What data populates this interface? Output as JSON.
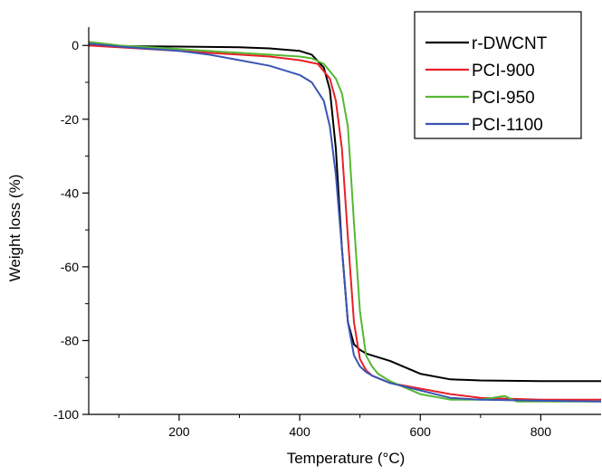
{
  "chart_data": {
    "type": "line",
    "title": "",
    "xlabel": "Temperature (°C)",
    "ylabel": "Weight loss (%)",
    "xlim": [
      50,
      900
    ],
    "ylim": [
      -100,
      3
    ],
    "x_ticks": [
      {
        "value": 200,
        "label": "200"
      },
      {
        "value": 400,
        "label": "400"
      },
      {
        "value": 600,
        "label": "600"
      },
      {
        "value": 800,
        "label": "800"
      }
    ],
    "y_ticks": [
      {
        "value": 0,
        "label": "0"
      },
      {
        "value": -20,
        "label": "-20"
      },
      {
        "value": -40,
        "label": "-40"
      },
      {
        "value": -60,
        "label": "-60"
      },
      {
        "value": -80,
        "label": "-80"
      },
      {
        "value": -100,
        "label": "-100"
      }
    ],
    "grid": false,
    "legend_position": "top-right",
    "series": [
      {
        "name": "r-DWCNT",
        "color": "#000000",
        "x": [
          50,
          100,
          200,
          300,
          350,
          400,
          420,
          440,
          450,
          460,
          470,
          480,
          490,
          500,
          510,
          520,
          550,
          600,
          650,
          700,
          800,
          900
        ],
        "y": [
          0,
          -0.2,
          -0.3,
          -0.5,
          -0.8,
          -1.5,
          -2.5,
          -6,
          -12,
          -28,
          -55,
          -75,
          -81,
          -82.5,
          -83.5,
          -84,
          -85.5,
          -89,
          -90.5,
          -90.8,
          -91,
          -91
        ]
      },
      {
        "name": "PCI-900",
        "color": "#e8202a",
        "x": [
          50,
          100,
          200,
          250,
          300,
          350,
          400,
          430,
          450,
          460,
          470,
          480,
          490,
          500,
          510,
          520,
          550,
          600,
          650,
          700,
          800,
          900
        ],
        "y": [
          0,
          -0.5,
          -1.5,
          -2,
          -2.5,
          -3,
          -4,
          -5,
          -9,
          -15,
          -28,
          -52,
          -75,
          -85,
          -88,
          -89.5,
          -91.5,
          -93,
          -94.5,
          -95.5,
          -96,
          -96
        ]
      },
      {
        "name": "PCI-950",
        "color": "#55b831",
        "x": [
          50,
          100,
          200,
          300,
          350,
          400,
          420,
          440,
          460,
          470,
          480,
          490,
          500,
          510,
          520,
          530,
          550,
          600,
          650,
          700,
          720,
          740,
          760,
          800,
          900
        ],
        "y": [
          1,
          0,
          -1,
          -2,
          -2.5,
          -3,
          -3.5,
          -5,
          -9,
          -13,
          -22,
          -48,
          -72,
          -84,
          -87,
          -89,
          -91,
          -94.5,
          -96,
          -96,
          -95.5,
          -95,
          -96.5,
          -96.5,
          -96.5
        ]
      },
      {
        "name": "PCI-1100",
        "color": "#3a55b4",
        "x": [
          50,
          100,
          200,
          250,
          300,
          350,
          400,
          420,
          440,
          450,
          460,
          470,
          480,
          490,
          500,
          510,
          520,
          550,
          600,
          650,
          700,
          800,
          900
        ],
        "y": [
          0.5,
          -0.3,
          -1.5,
          -2.5,
          -4,
          -5.5,
          -8,
          -10,
          -15,
          -22,
          -35,
          -55,
          -75,
          -84,
          -87,
          -88.5,
          -89.5,
          -91.5,
          -93.5,
          -95.5,
          -96,
          -96.3,
          -96.5
        ]
      }
    ]
  }
}
